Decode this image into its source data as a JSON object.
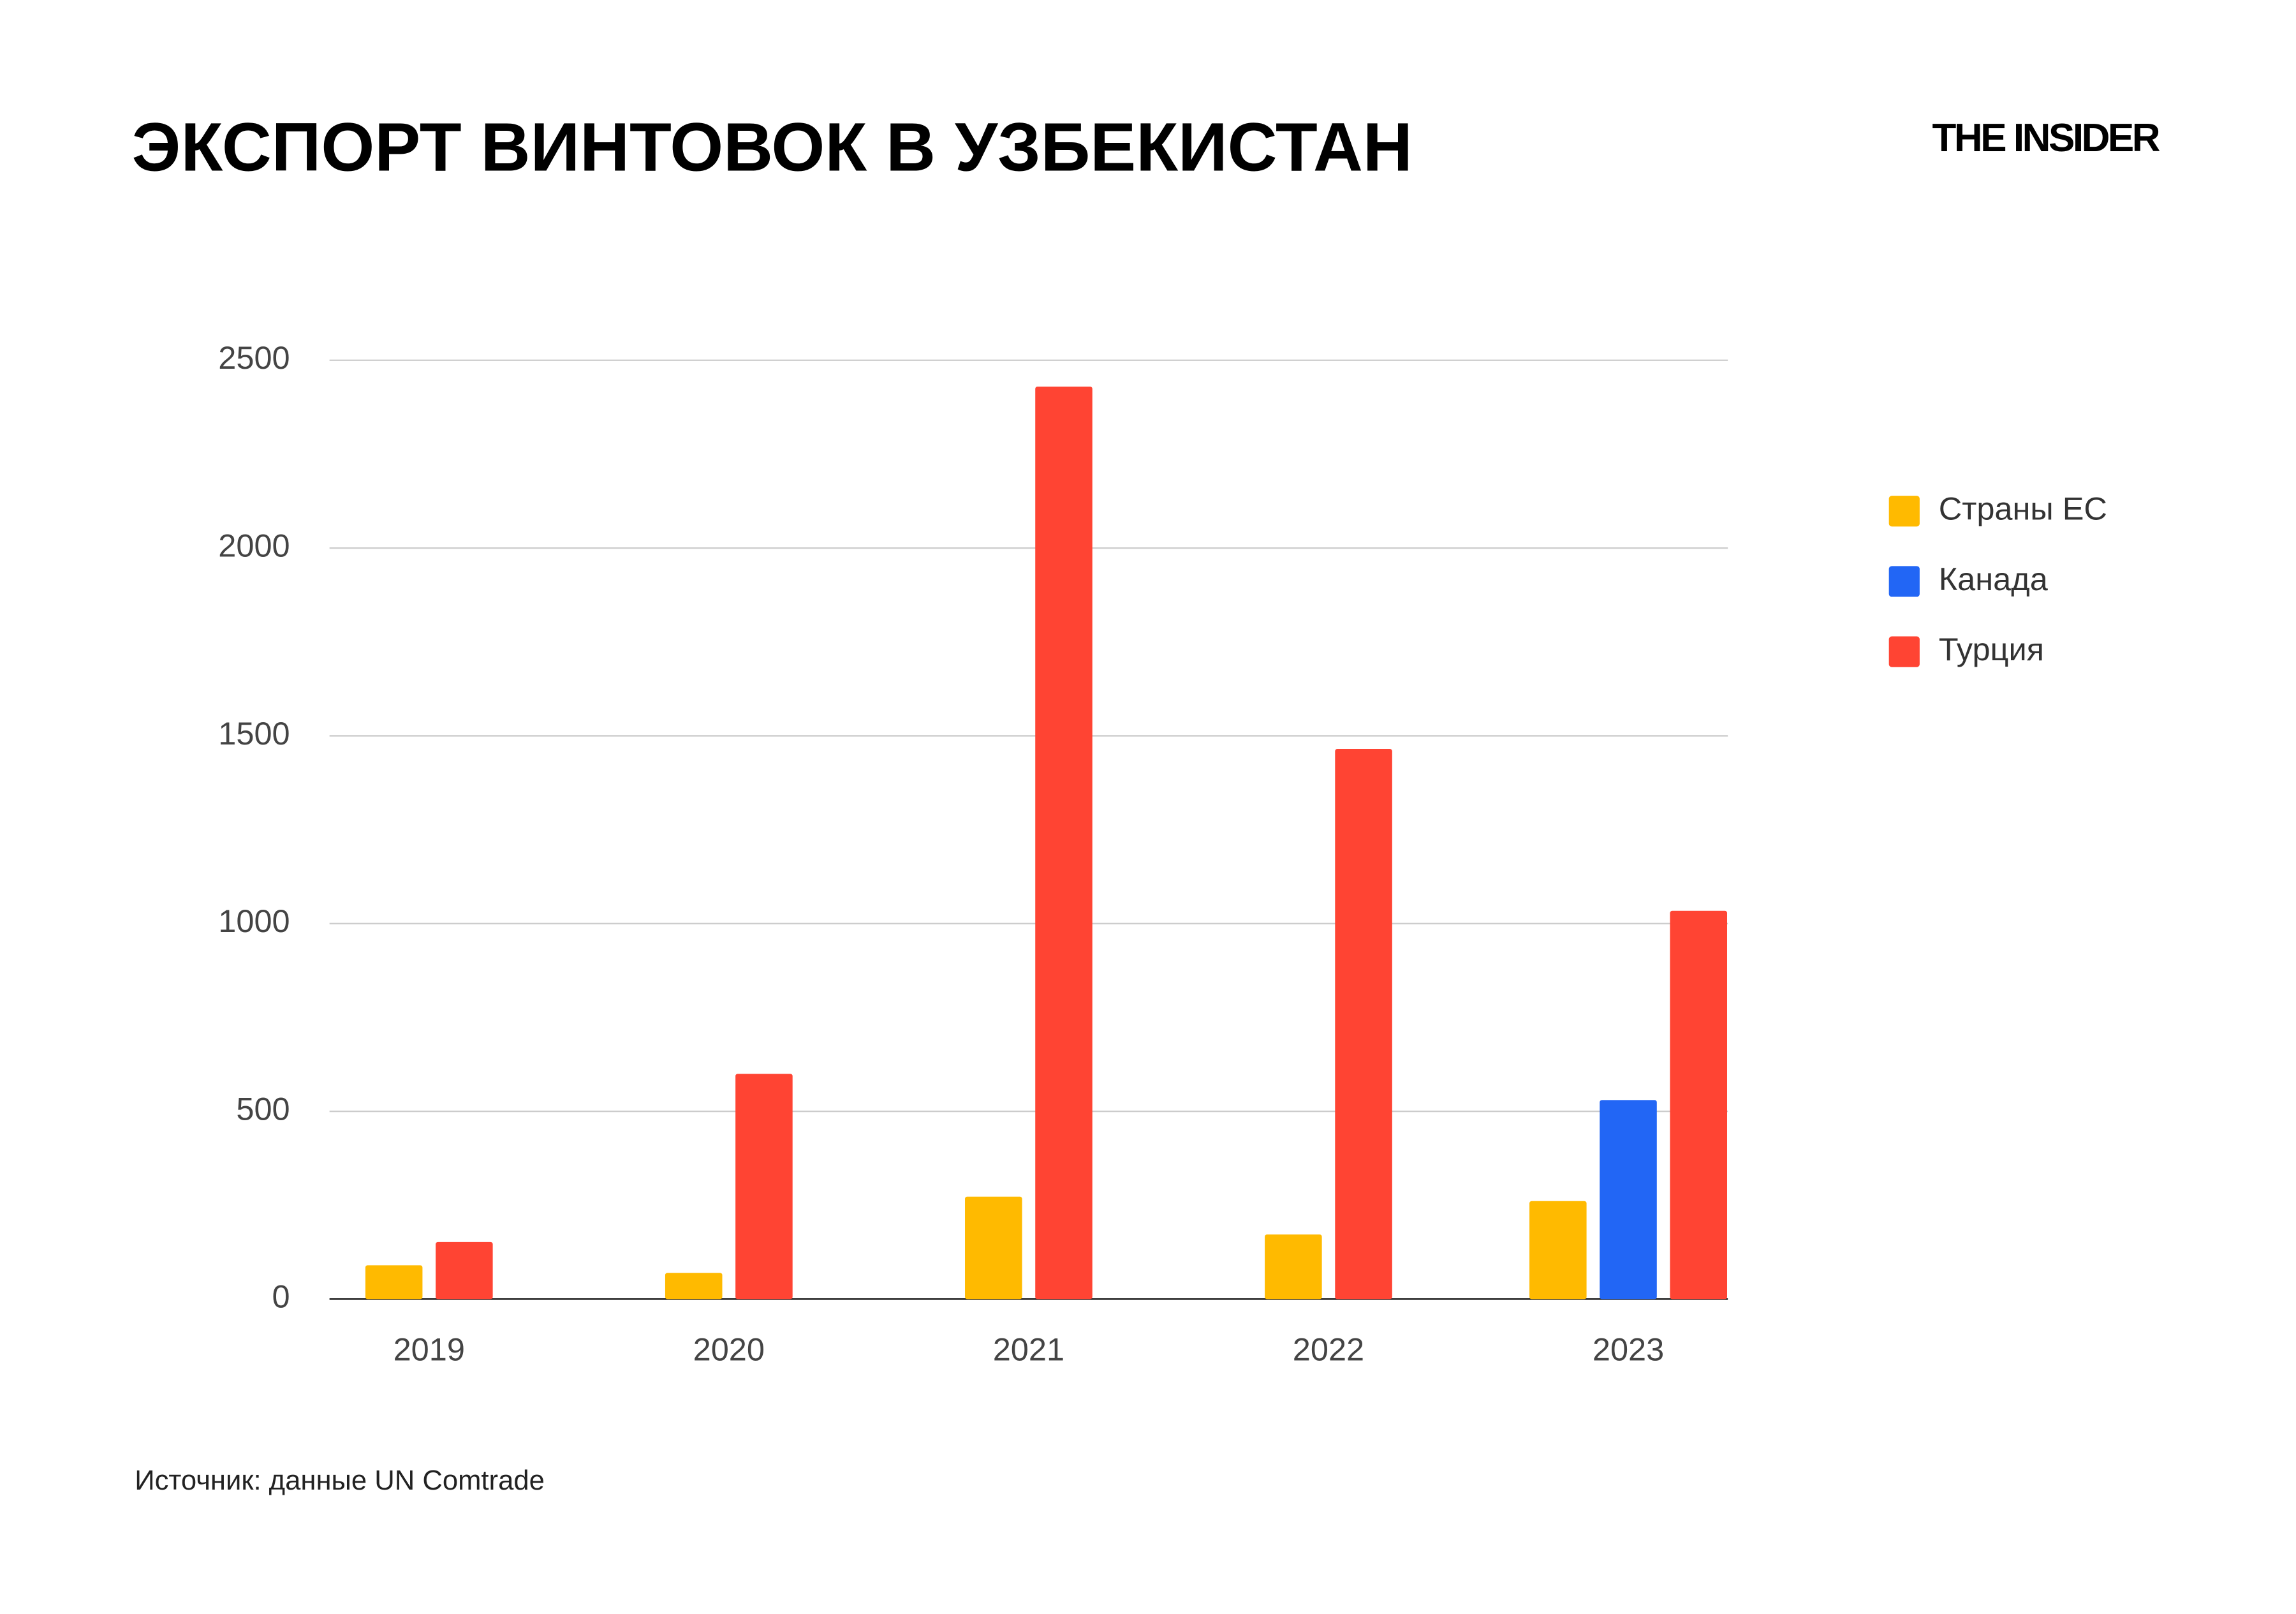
{
  "chart_data": {
    "type": "bar",
    "title": "ЭКСПОРТ ВИНТОВОК В УЗБЕКИСТАН",
    "logo": "THE INSIDER",
    "source": "Источник: данные UN Comtrade",
    "categories": [
      "2019",
      "2020",
      "2021",
      "2022",
      "2023"
    ],
    "series": [
      {
        "name": "Страны ЕС",
        "color": "#FFBA00",
        "values": [
          90,
          70,
          273,
          172,
          261
        ]
      },
      {
        "name": "Канада",
        "color": "#2266F5",
        "values": [
          null,
          null,
          null,
          null,
          530
        ]
      },
      {
        "name": "Турция",
        "color": "#FF4433",
        "values": [
          152,
          600,
          2430,
          1465,
          1034
        ]
      }
    ],
    "ylim": [
      0,
      2500
    ],
    "yticks": [
      0,
      500,
      1000,
      1500,
      2000,
      2500
    ],
    "grid": true,
    "legend": "right"
  }
}
